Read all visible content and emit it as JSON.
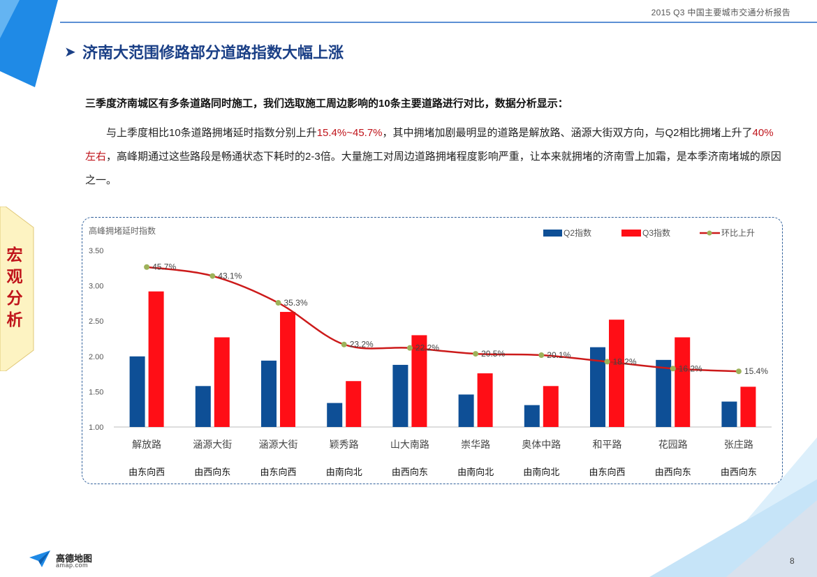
{
  "header": {
    "report_title": "2015 Q3 中国主要城市交通分析报告"
  },
  "section": {
    "title": "济南大范围修路部分道路指数大幅上涨"
  },
  "side_tab": {
    "chars": [
      "宏",
      "观",
      "分",
      "析"
    ]
  },
  "intro": {
    "lead": "三季度济南城区有多条道路同时施工，我们选取施工周边影响的10条主要道路进行对比，数据分析显示：",
    "p1": "与上季度相比10条道路拥堵延时指数分别上升",
    "h1": "15.4%~45.7%",
    "p2": "，其中拥堵加剧最明显的道路是解放路、涵源大街双方向，与Q2相比拥堵上升了",
    "h2": "40%左右",
    "p3": "，高峰期通过这些路段是畅通状态下耗时的2-3倍。大量施工对周边道路拥堵程度影响严重，让本来就拥堵的济南雪上加霜，是本季济南堵城的原因之一。"
  },
  "chart_data": {
    "type": "bar",
    "ylabel": "高峰拥堵延时指数",
    "ylim": [
      1.0,
      3.5
    ],
    "yticks": [
      "1.00",
      "1.50",
      "2.00",
      "2.50",
      "3.00",
      "3.50"
    ],
    "categories": [
      "解放路",
      "涵源大街",
      "涵源大街",
      "颖秀路",
      "山大南路",
      "崇华路",
      "奥体中路",
      "和平路",
      "花园路",
      "张庄路"
    ],
    "directions": [
      "由东向西",
      "由西向东",
      "由东向西",
      "由南向北",
      "由西向东",
      "由南向北",
      "由南向北",
      "由东向西",
      "由西向东",
      "由西向东"
    ],
    "series": [
      {
        "name": "Q2指数",
        "color": "#0e4f96",
        "values": [
          2.0,
          1.58,
          1.94,
          1.34,
          1.88,
          1.46,
          1.31,
          2.13,
          1.95,
          1.36
        ]
      },
      {
        "name": "Q3指数",
        "color": "#ff0e16",
        "values": [
          2.92,
          2.27,
          2.63,
          1.65,
          2.3,
          1.76,
          1.58,
          2.52,
          2.27,
          1.57
        ]
      }
    ],
    "line_series": {
      "name": "环比上升",
      "color": "#cc1a1a",
      "marker_color": "#9db25a",
      "labels": [
        "45.7%",
        "43.1%",
        "35.3%",
        "23.2%",
        "22.2%",
        "20.5%",
        "20.1%",
        "18.2%",
        "16.2%",
        "15.4%"
      ],
      "values_pct": [
        45.7,
        43.1,
        35.3,
        23.2,
        22.2,
        20.5,
        20.1,
        18.2,
        16.2,
        15.4
      ]
    },
    "legend_position": "top-right",
    "grid": false
  },
  "footer": {
    "brand": "高德地图",
    "url": "amap.com",
    "page": "8"
  }
}
